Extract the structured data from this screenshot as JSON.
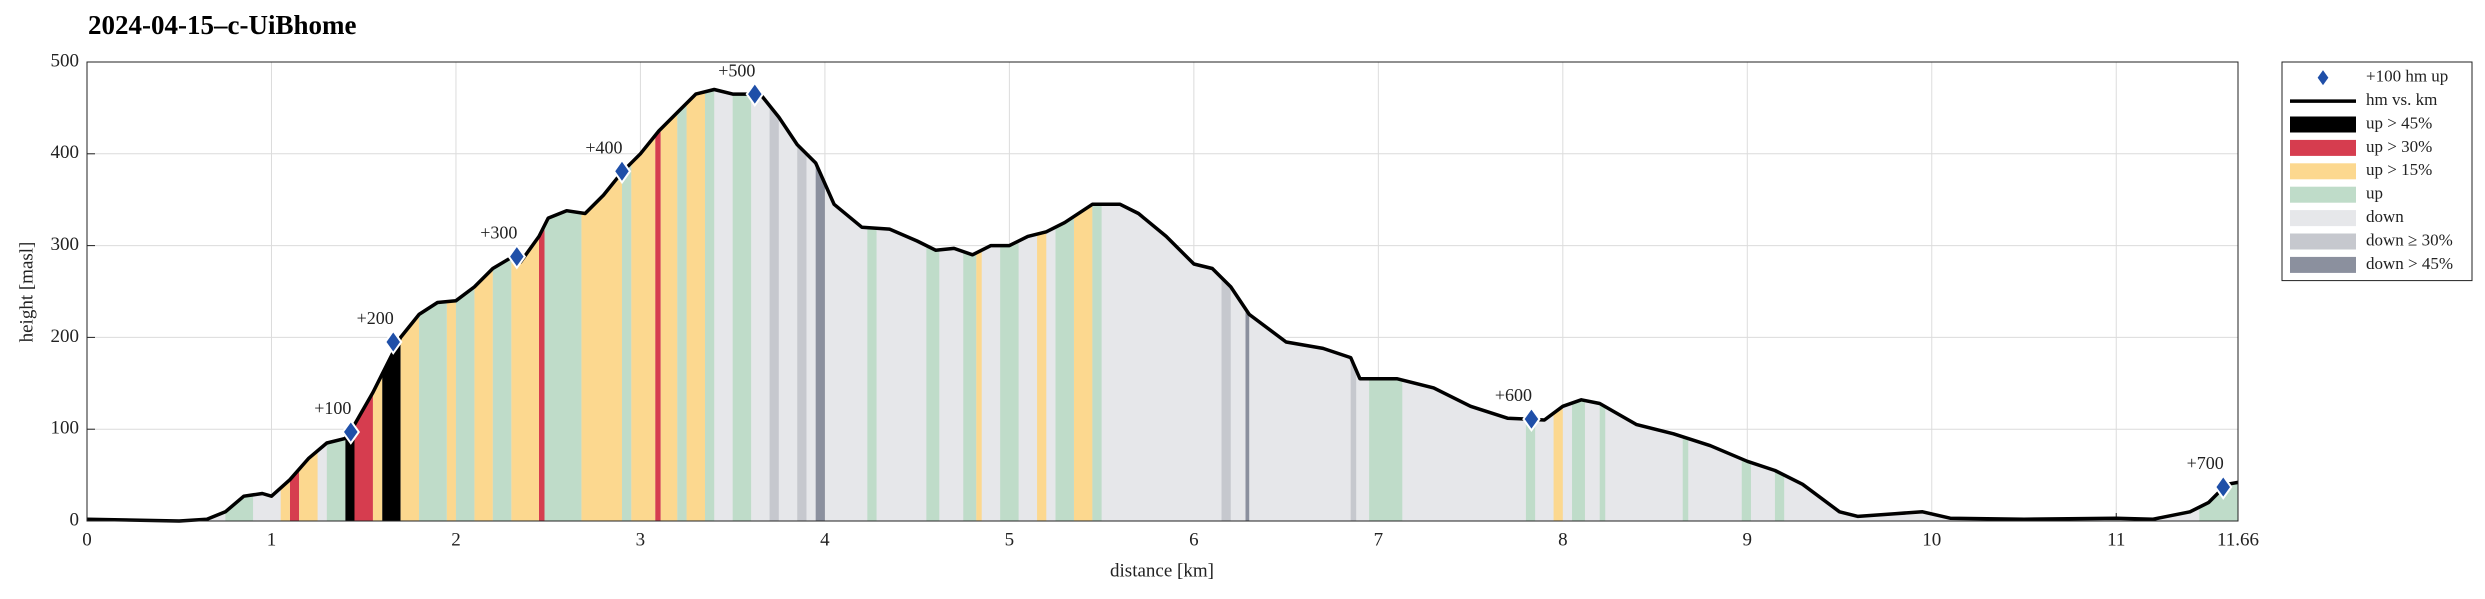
{
  "chart_data": {
    "type": "area",
    "title": "2024-04-15–c-UiBhome",
    "xlabel": "distance [km]",
    "ylabel": "height [masl]",
    "xlim": [
      0,
      11.66
    ],
    "ylim": [
      0,
      500
    ],
    "xticks": [
      0,
      1,
      2,
      3,
      4,
      5,
      6,
      7,
      8,
      9,
      10,
      11,
      11.66
    ],
    "yticks": [
      0,
      100,
      200,
      300,
      400,
      500
    ],
    "grid": true,
    "markers": {
      "name": "+100 hm up",
      "color": "#1f4fa8",
      "x": [
        1.43,
        1.66,
        2.33,
        2.9,
        3.62,
        7.83,
        11.58
      ],
      "values": [
        97,
        195,
        288,
        381,
        465,
        111,
        37
      ],
      "labels": [
        "+100",
        "+200",
        "+300",
        "+400",
        "+500",
        "+600",
        "+700"
      ]
    },
    "profile": {
      "name": "hm vs. km",
      "color": "#000000",
      "x": [
        0,
        0.5,
        0.65,
        0.75,
        0.85,
        0.95,
        1.0,
        1.1,
        1.2,
        1.3,
        1.4,
        1.45,
        1.55,
        1.65,
        1.7,
        1.8,
        1.9,
        2.0,
        2.1,
        2.2,
        2.3,
        2.35,
        2.45,
        2.5,
        2.6,
        2.7,
        2.8,
        2.9,
        3.0,
        3.1,
        3.2,
        3.3,
        3.4,
        3.5,
        3.65,
        3.75,
        3.85,
        3.95,
        4.05,
        4.2,
        4.35,
        4.5,
        4.6,
        4.7,
        4.8,
        4.9,
        5.0,
        5.1,
        5.2,
        5.3,
        5.45,
        5.6,
        5.7,
        5.85,
        6.0,
        6.1,
        6.2,
        6.3,
        6.5,
        6.7,
        6.85,
        6.9,
        7.1,
        7.3,
        7.5,
        7.7,
        7.9,
        8.0,
        8.1,
        8.2,
        8.4,
        8.6,
        8.8,
        9.0,
        9.15,
        9.3,
        9.5,
        9.6,
        9.8,
        9.95,
        10.1,
        10.5,
        11.0,
        11.2,
        11.4,
        11.5,
        11.6,
        11.66
      ],
      "values": [
        2,
        0,
        2,
        10,
        27,
        30,
        27,
        45,
        68,
        85,
        90,
        105,
        140,
        180,
        200,
        225,
        238,
        240,
        255,
        275,
        287,
        282,
        310,
        330,
        338,
        335,
        355,
        380,
        400,
        425,
        445,
        465,
        470,
        465,
        465,
        440,
        410,
        390,
        345,
        320,
        318,
        305,
        295,
        297,
        290,
        300,
        300,
        310,
        315,
        325,
        345,
        345,
        335,
        310,
        280,
        275,
        255,
        225,
        195,
        188,
        178,
        155,
        155,
        145,
        125,
        112,
        110,
        125,
        132,
        128,
        105,
        95,
        82,
        65,
        55,
        40,
        10,
        5,
        8,
        10,
        3,
        2,
        3,
        2,
        10,
        20,
        40,
        42
      ]
    },
    "bands": [
      {
        "name": "up > 45%",
        "color": "#000000",
        "segments": [
          [
            1.4,
            1.45
          ],
          [
            1.6,
            1.7
          ]
        ]
      },
      {
        "name": "up > 30%",
        "color": "#d63d4f",
        "segments": [
          [
            1.1,
            1.15
          ],
          [
            1.45,
            1.55
          ],
          [
            2.45,
            2.48
          ],
          [
            3.08,
            3.11
          ]
        ]
      },
      {
        "name": "up > 15%",
        "color": "#fcd88f",
        "segments": [
          [
            1.05,
            1.1
          ],
          [
            1.15,
            1.25
          ],
          [
            1.55,
            1.6
          ],
          [
            1.7,
            1.8
          ],
          [
            1.95,
            2.0
          ],
          [
            2.1,
            2.2
          ],
          [
            2.3,
            2.45
          ],
          [
            2.68,
            2.9
          ],
          [
            2.95,
            3.08
          ],
          [
            3.11,
            3.2
          ],
          [
            3.25,
            3.35
          ],
          [
            4.82,
            4.85
          ],
          [
            5.15,
            5.2
          ],
          [
            5.35,
            5.45
          ],
          [
            7.95,
            8.0
          ]
        ]
      },
      {
        "name": "up",
        "color": "#bfdcc9",
        "segments": [
          [
            0.75,
            0.9
          ],
          [
            1.3,
            1.4
          ],
          [
            1.8,
            1.95
          ],
          [
            2.0,
            2.1
          ],
          [
            2.2,
            2.3
          ],
          [
            2.48,
            2.68
          ],
          [
            2.9,
            2.95
          ],
          [
            3.2,
            3.25
          ],
          [
            3.35,
            3.4
          ],
          [
            3.5,
            3.6
          ],
          [
            4.23,
            4.28
          ],
          [
            4.55,
            4.62
          ],
          [
            4.75,
            4.82
          ],
          [
            4.95,
            5.05
          ],
          [
            5.25,
            5.35
          ],
          [
            5.45,
            5.5
          ],
          [
            6.95,
            7.13
          ],
          [
            7.8,
            7.85
          ],
          [
            8.05,
            8.12
          ],
          [
            8.2,
            8.23
          ],
          [
            8.65,
            8.68
          ],
          [
            8.97,
            9.02
          ],
          [
            9.15,
            9.2
          ],
          [
            11.45,
            11.66
          ]
        ]
      },
      {
        "name": "down",
        "color": "#e6e7ea",
        "segments": []
      },
      {
        "name": "down ≥ 30%",
        "color": "#c6c8ce",
        "segments": [
          [
            3.7,
            3.75
          ],
          [
            3.85,
            3.9
          ],
          [
            6.15,
            6.2
          ],
          [
            6.85,
            6.88
          ]
        ]
      },
      {
        "name": "down > 45%",
        "color": "#8b909e",
        "segments": [
          [
            3.95,
            4.0
          ],
          [
            6.28,
            6.3
          ]
        ]
      }
    ]
  }
}
